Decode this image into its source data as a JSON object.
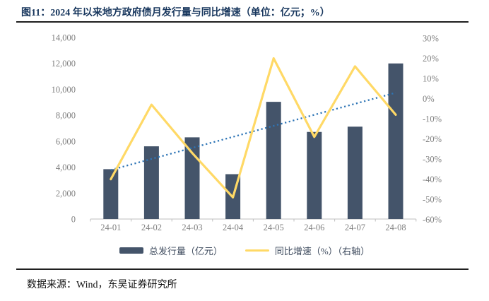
{
  "title": "图11：2024 年以来地方政府债月发行量与同比增速（单位：亿元；%）",
  "source": "数据来源：Wind，东吴证券研究所",
  "legend": [
    {
      "label": "总发行量（亿元）"
    },
    {
      "label": "同比增速（%）（右轴）"
    }
  ],
  "colors": {
    "bar": "#44546A",
    "yoy_line": "#FFD966",
    "trendline": "#2E75B6",
    "title_text": "#17365D",
    "axis_text": "#808080",
    "axis_line": "#BFBFBF"
  },
  "chart_data": {
    "type": "bar",
    "title": "2024年以来地方政府债月发行量与同比增速",
    "unit": "亿元；%",
    "categories": [
      "24-01",
      "24-02",
      "24-03",
      "24-04",
      "24-05",
      "24-06",
      "24-07",
      "24-08"
    ],
    "series": [
      {
        "name": "总发行量（亿元）",
        "type": "bar",
        "axis": "left",
        "color": "#44546A",
        "values": [
          3845,
          5607,
          6299,
          3459,
          9036,
          6715,
          7122,
          11996
        ]
      },
      {
        "name": "同比增速（%）（右轴）",
        "type": "line",
        "axis": "right",
        "color": "#FFD966",
        "values": [
          -40,
          -3,
          -27,
          -49,
          20,
          -19,
          16,
          -8
        ]
      }
    ],
    "trendline": {
      "basis_series": "总发行量（亿元）",
      "fit": "linear",
      "style": "dotted",
      "color": "#2E75B6",
      "axis": "left"
    },
    "left_axis": {
      "min": 0,
      "max": 14000,
      "step": 2000,
      "labels": [
        "14,000",
        "12,000",
        "10,000",
        "8,000",
        "6,000",
        "4,000",
        "2,000",
        "0"
      ]
    },
    "right_axis": {
      "min": -60,
      "max": 30,
      "step": 10,
      "labels": [
        "30%",
        "20%",
        "10%",
        "0%",
        "-10%",
        "-20%",
        "-30%",
        "-40%",
        "-50%",
        "-60%"
      ]
    },
    "grid": false,
    "legend_position": "bottom"
  }
}
